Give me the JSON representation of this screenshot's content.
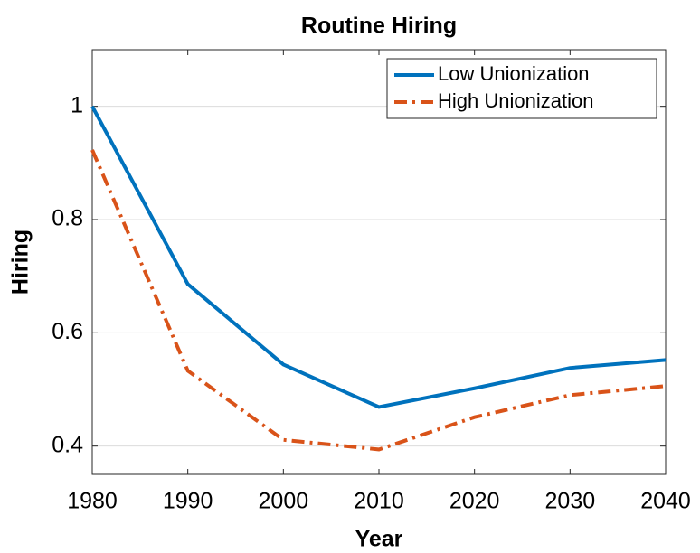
{
  "chart_data": {
    "type": "line",
    "title": "Routine Hiring",
    "xlabel": "Year",
    "ylabel": "Hiring",
    "x": [
      1980,
      1990,
      2000,
      2010,
      2020,
      2030,
      2040
    ],
    "series": [
      {
        "name": "Low Unionization",
        "color": "#0072bd",
        "dash": "solid",
        "values": [
          1.0,
          0.686,
          0.544,
          0.469,
          0.502,
          0.538,
          0.552
        ]
      },
      {
        "name": "High Unionization",
        "color": "#d95319",
        "dash": "dashdot",
        "values": [
          0.923,
          0.533,
          0.411,
          0.394,
          0.451,
          0.49,
          0.506
        ]
      }
    ],
    "xlim": [
      1980,
      2040
    ],
    "xticks": [
      1980,
      1990,
      2000,
      2010,
      2020,
      2030,
      2040
    ],
    "ylim": [
      0.35,
      1.1
    ],
    "yticks": [
      0.4,
      0.6,
      0.8,
      1
    ],
    "grid": "y",
    "legend": "upper right"
  }
}
